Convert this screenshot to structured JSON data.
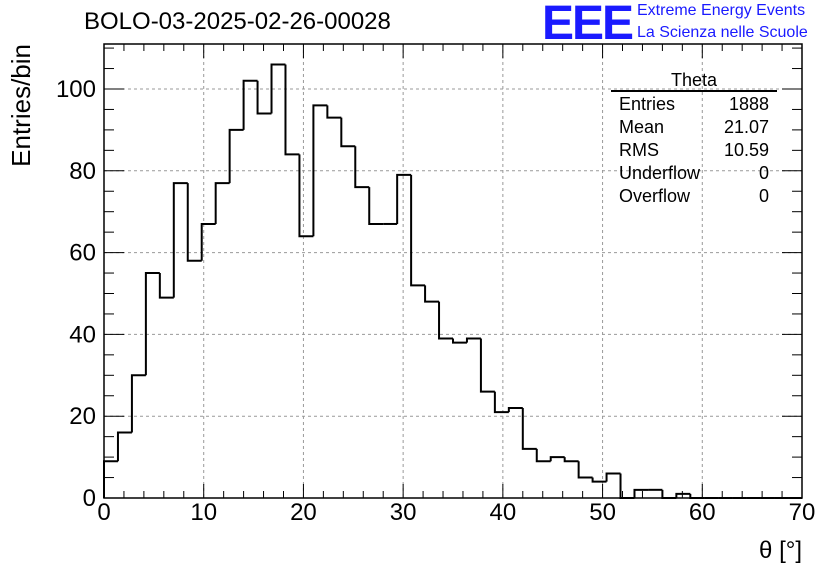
{
  "title": "BOLO-03-2025-02-26-00028",
  "logo": {
    "text": "EEE",
    "line1": "Extreme Energy Events",
    "line2": "La Scienza nelle Scuole",
    "color": "#1a1aff"
  },
  "stats": {
    "name": "Theta",
    "rows": [
      {
        "label": "Entries",
        "value": "1888"
      },
      {
        "label": "Mean",
        "value": "21.07"
      },
      {
        "label": "RMS",
        "value": "10.59"
      },
      {
        "label": "Underflow",
        "value": "0"
      },
      {
        "label": "Overflow",
        "value": "0"
      }
    ]
  },
  "chart_data": {
    "type": "histogram",
    "xlabel": "θ [°]",
    "ylabel": "Entries/bin",
    "xlim": [
      0,
      70
    ],
    "ylim": [
      0,
      111
    ],
    "bin_width": 1.4,
    "bin_edges_start": 0,
    "values": [
      9,
      16,
      30,
      55,
      49,
      77,
      58,
      67,
      77,
      90,
      102,
      94,
      106,
      84,
      64,
      96,
      93,
      86,
      76,
      67,
      67,
      79,
      52,
      48,
      39,
      38,
      39,
      26,
      21,
      22,
      12,
      9,
      10,
      9,
      5,
      4,
      6,
      0,
      2,
      2,
      0,
      1,
      0,
      0,
      0,
      0,
      0,
      0,
      0,
      0
    ],
    "x_ticks": [
      0,
      10,
      20,
      30,
      40,
      50,
      60,
      70
    ],
    "y_ticks": [
      0,
      20,
      40,
      60,
      80,
      100
    ],
    "grid": true,
    "legend": "top-right"
  }
}
